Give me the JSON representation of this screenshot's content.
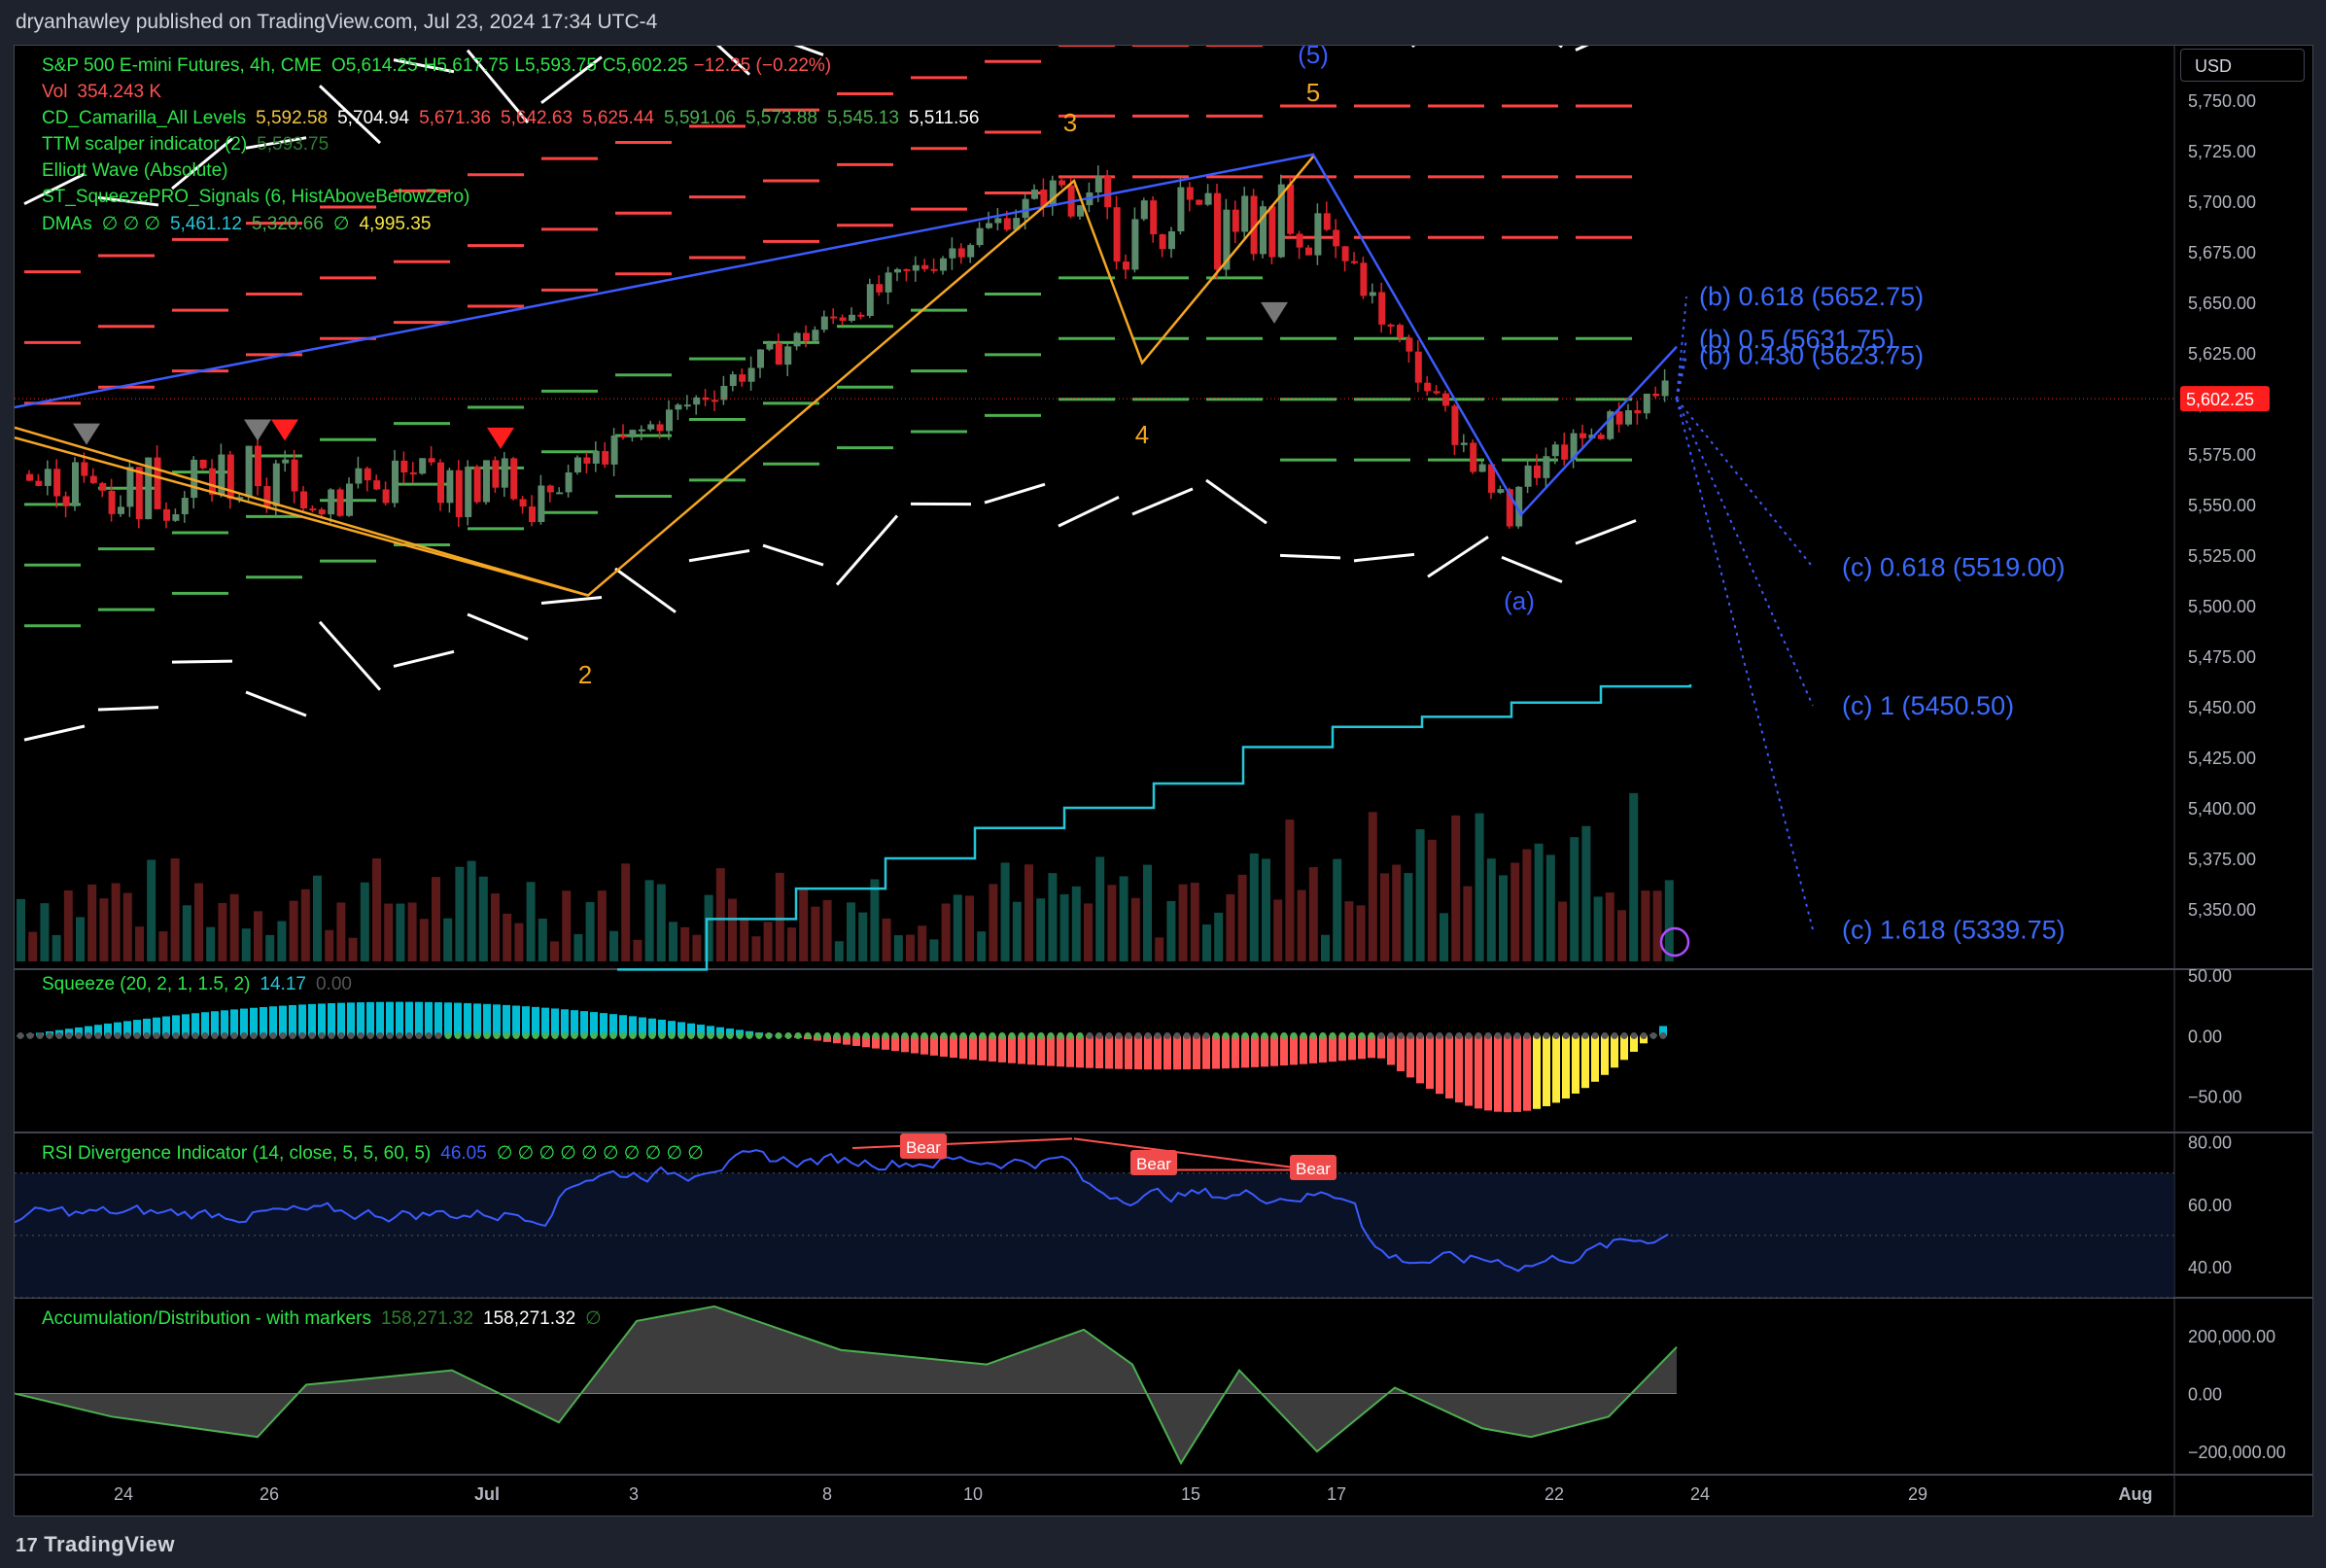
{
  "header": {
    "publisher": "dryanhawley published on TradingView.com, Jul 23, 2024 17:34 UTC-4"
  },
  "footer": {
    "brand": "TradingView"
  },
  "currency": "USD",
  "colors": {
    "up": "#5b8a6b",
    "down": "#e0222a",
    "blue": "#3b5bff",
    "cyan": "#26c6da",
    "orange": "#f5a623"
  },
  "legend_main": {
    "symbol": "S&P 500 E-mini Futures, 4h, CME",
    "o": "O5,614.25",
    "h": "H5,617.75",
    "l": "L5,593.75",
    "c": "C5,602.25",
    "chg": "−12.25 (−0.22%)",
    "vol_label": "Vol",
    "vol_value": "354.243 K",
    "camarilla_label": "CD_Camarilla_All Levels",
    "cam_values": [
      "5,592.58",
      "5,704.94",
      "5,671.36",
      "5,642.63",
      "5,625.44",
      "5,591.06",
      "5,573.88",
      "5,545.13",
      "5,511.56"
    ],
    "ttm_label": "TTM scalper indicator (2)",
    "ttm_value": "5,593.75",
    "elliott_label": "Elliott Wave (Absolute)",
    "squeezepro_label": "ST_SqueezePRO_Signals (6, HistAboveBelowZero)",
    "dma_label": "DMAs",
    "dma_symbols": "∅ ∅ ∅",
    "dma_v1": "5,461.12",
    "dma_v2": "5,320.66",
    "dma_sym2": "∅",
    "dma_v3": "4,995.35"
  },
  "legend_squeeze": {
    "label": "Squeeze (20, 2, 1, 1.5, 2)",
    "v1": "14.17",
    "v2": "0.00"
  },
  "legend_rsi": {
    "label": "RSI Divergence Indicator (14, close, 5, 5, 60, 5)",
    "v1": "46.05",
    "symbols": "∅ ∅ ∅ ∅ ∅ ∅ ∅ ∅ ∅ ∅"
  },
  "legend_ad": {
    "label": "Accumulation/Distribution - with markers",
    "v1": "158,271.32",
    "v2": "158,271.32",
    "sym": "∅"
  },
  "chart_data": [
    {
      "type": "candlestick",
      "title": "S&P 500 E-mini Futures, 4h, CME",
      "y_ticks": [
        "5,750.00",
        "5,725.00",
        "5,700.00",
        "5,675.00",
        "5,650.00",
        "5,625.00",
        "5,600.00",
        "5,575.00",
        "5,550.00",
        "5,525.00",
        "5,500.00",
        "5,475.00",
        "5,450.00",
        "5,425.00",
        "5,400.00",
        "5,375.00",
        "5,350.00"
      ],
      "y_tick_values": [
        5750,
        5725,
        5700,
        5675,
        5650,
        5625,
        5600,
        5575,
        5550,
        5525,
        5500,
        5475,
        5450,
        5425,
        5400,
        5375,
        5350
      ],
      "ylim": [
        5325,
        5772
      ],
      "x_ticks": [
        "24",
        "26",
        "Jul",
        "3",
        "8",
        "10",
        "15",
        "17",
        "22",
        "24",
        "29",
        "Aug"
      ],
      "last_price": "5,602.25",
      "last_price_value": 5602.25,
      "elliott_labels": [
        {
          "text": "(5)",
          "color": "blue"
        },
        {
          "text": "5",
          "color": "orange"
        },
        {
          "text": "3",
          "color": "orange"
        },
        {
          "text": "4",
          "color": "orange"
        },
        {
          "text": "2",
          "color": "orange"
        },
        {
          "text": "(a)",
          "color": "blue"
        }
      ],
      "fib_projections": [
        {
          "text": "(b) 0.618 (5652.75)",
          "value": 5652.75
        },
        {
          "text": "(b) 0.5 (5631.75)",
          "value": 5631.75
        },
        {
          "text": "(b) 0.430 (5623.75)",
          "value": 5623.75
        },
        {
          "text": "(c) 0.618 (5519.00)",
          "value": 5519.0
        },
        {
          "text": "(c) 1 (5450.50)",
          "value": 5450.5
        },
        {
          "text": "(c) 1.618 (5339.75)",
          "value": 5339.75
        }
      ],
      "wave_path_blue": [
        [
          5452,
          5698
        ],
        [
          5720,
          5723
        ],
        [
          5545,
          5612
        ],
        [
          5652,
          5625
        ]
      ],
      "wave_path_orange": [
        [
          5588,
          5565
        ],
        [
          5505,
          5710
        ],
        [
          5620,
          5689
        ],
        [
          5722,
          5720
        ]
      ],
      "dma_line": [
        5320,
        5345,
        5360,
        5375,
        5390,
        5400,
        5412,
        5430,
        5440,
        5445,
        5452,
        5460,
        5461
      ]
    },
    {
      "type": "histogram",
      "title": "Squeeze (20, 2, 1, 1.5, 2)",
      "y_ticks": [
        "50.00",
        "0.00",
        "−50.00"
      ],
      "y_tick_values": [
        50,
        0,
        -50
      ],
      "ylim": [
        -80,
        55
      ]
    },
    {
      "type": "line",
      "title": "RSI Divergence Indicator (14, close, 5, 5, 60, 5)",
      "y_ticks": [
        "80.00",
        "60.00",
        "40.00"
      ],
      "y_tick_values": [
        80,
        60,
        40
      ],
      "ylim": [
        30,
        83
      ],
      "labels": [
        "Bear",
        "Bear",
        "Bear"
      ]
    },
    {
      "type": "area",
      "title": "Accumulation/Distribution - with markers",
      "y_ticks": [
        "200,000.00",
        "0.00",
        "−200,000.00"
      ],
      "y_tick_values": [
        200000,
        0,
        -200000
      ],
      "ylim": [
        -280000,
        330000
      ]
    }
  ]
}
